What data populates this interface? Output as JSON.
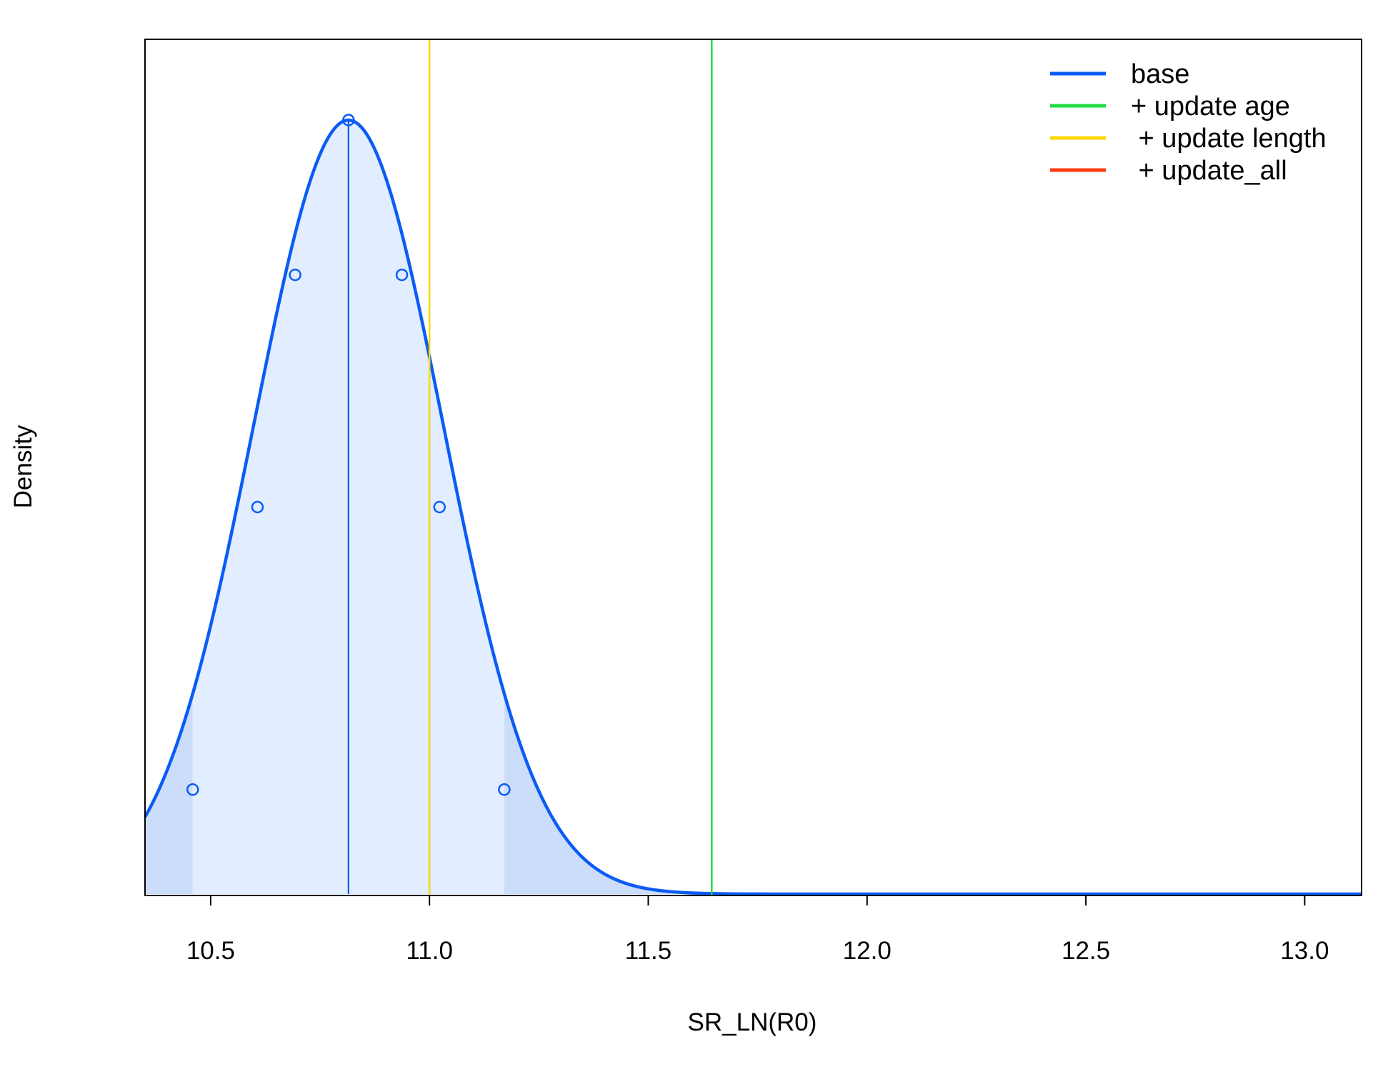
{
  "chart_data": {
    "type": "line",
    "title": "",
    "xlabel": "SR_LN(R0)",
    "ylabel": "Density",
    "xlim": [
      10.35,
      13.13
    ],
    "x_ticks": [
      "10.5",
      "11.0",
      "11.5",
      "12.0",
      "12.5",
      "13.0"
    ],
    "x_tick_values": [
      10.5,
      11.0,
      11.5,
      12.0,
      12.5,
      13.0
    ],
    "y_ticks_shown": false,
    "grid": false,
    "legend_position": "top-right",
    "series": [
      {
        "name": "base",
        "color": "#0B5CF5",
        "kind": "normal density curve",
        "mean": 10.815,
        "sd": 0.2165,
        "median_line": 10.815,
        "marked_quantiles": [
          {
            "x": 10.459,
            "relative_density": 0.135
          },
          {
            "x": 10.607,
            "relative_density": 0.5
          },
          {
            "x": 10.693,
            "relative_density": 0.8
          },
          {
            "x": 10.815,
            "relative_density": 1.0
          },
          {
            "x": 10.937,
            "relative_density": 0.8
          },
          {
            "x": 11.023,
            "relative_density": 0.5
          },
          {
            "x": 11.171,
            "relative_density": 0.135
          }
        ],
        "shaded_interval_inner": [
          10.459,
          11.171
        ],
        "inner_fill": "#E2EDFF",
        "outer_fill": "#CCDDFB"
      },
      {
        "name": "+ update age",
        "color": "#22DD44",
        "kind": "vertical line",
        "x": 11.645
      },
      {
        "name": " + update length",
        "color": "#F8D800",
        "kind": "vertical line",
        "x": 11.0
      },
      {
        "name": " + update_all",
        "color": "#FF3A10",
        "kind": "legend only"
      }
    ]
  }
}
